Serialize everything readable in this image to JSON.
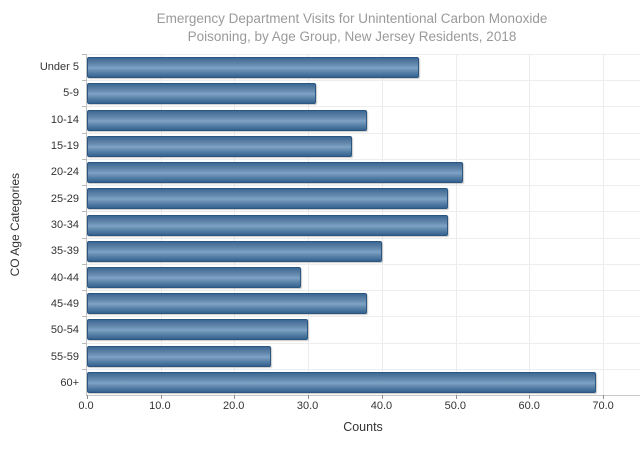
{
  "title": {
    "line1": "Emergency Department Visits for Unintentional Carbon Monoxide",
    "line2": "Poisoning, by Age Group, New Jersey Residents, 2018"
  },
  "chart_data": {
    "type": "bar",
    "orientation": "horizontal",
    "title": "Emergency Department Visits for Unintentional Carbon Monoxide Poisoning, by Age Group, New Jersey Residents, 2018",
    "categories": [
      "Under 5",
      "5-9",
      "10-14",
      "15-19",
      "20-24",
      "25-29",
      "30-34",
      "35-39",
      "40-44",
      "45-49",
      "50-54",
      "55-59",
      "60+"
    ],
    "values": [
      45,
      31,
      38,
      36,
      51,
      49,
      49,
      40,
      29,
      38,
      30,
      25,
      69
    ],
    "xlabel": "Counts",
    "ylabel": "CO Age Categories",
    "xlim": [
      0,
      75
    ],
    "xticks": [
      0,
      10,
      20,
      30,
      40,
      50,
      60,
      70
    ],
    "xtick_labels": [
      "0.0",
      "10.0",
      "20.0",
      "30.0",
      "40.0",
      "50.0",
      "60.0",
      "70.0"
    ],
    "grid": true,
    "legend": "none",
    "bar_color": "#4878a8",
    "bar_border_color": "#2b567f"
  },
  "colors": {
    "title_text": "#9a9a9a",
    "axis_text": "#333333",
    "gridline": "#ececec",
    "axis_line": "#c2c2c2"
  }
}
